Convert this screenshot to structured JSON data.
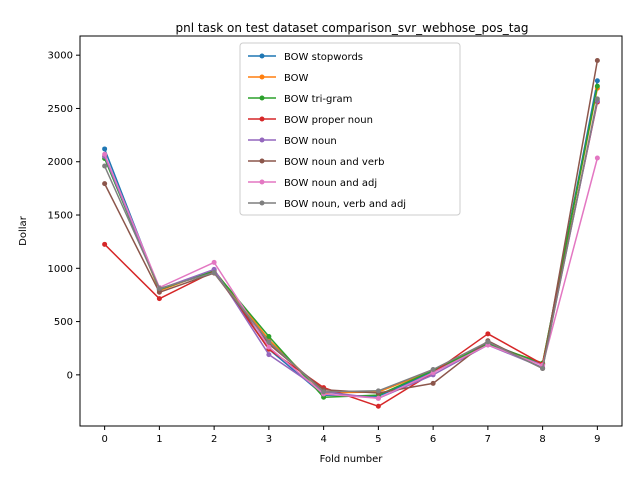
{
  "chart_data": {
    "type": "line",
    "title": "pnl task on test dataset comparison_svr_webhose_pos_tag",
    "xlabel": "Fold number",
    "ylabel": "Dollar",
    "x": [
      0,
      1,
      2,
      3,
      4,
      5,
      6,
      7,
      8,
      9
    ],
    "xlim": [
      -0.45,
      9.45
    ],
    "ylim": [
      -480,
      3180
    ],
    "yticks": [
      0,
      500,
      1000,
      1500,
      2000,
      2500,
      3000
    ],
    "grid": false,
    "legend_position": "upper center",
    "series": [
      {
        "name": "BOW stopwords",
        "color": "#1f77b4",
        "values": [
          2120,
          800,
          985,
          240,
          -190,
          -200,
          30,
          300,
          100,
          2760
        ]
      },
      {
        "name": "BOW",
        "color": "#ff7f0e",
        "values": [
          2050,
          790,
          980,
          330,
          -170,
          -160,
          40,
          290,
          110,
          2690
        ]
      },
      {
        "name": "BOW tri-gram",
        "color": "#2ca02c",
        "values": [
          2030,
          800,
          975,
          360,
          -210,
          -190,
          40,
          290,
          110,
          2710
        ]
      },
      {
        "name": "BOW proper noun",
        "color": "#d62728",
        "values": [
          1225,
          715,
          970,
          240,
          -120,
          -295,
          20,
          385,
          100,
          2560
        ]
      },
      {
        "name": "BOW noun",
        "color": "#9467bd",
        "values": [
          2050,
          805,
          990,
          190,
          -160,
          -220,
          0,
          280,
          70,
          2570
        ]
      },
      {
        "name": "BOW noun and verb",
        "color": "#8c564b",
        "values": [
          1795,
          775,
          955,
          290,
          -140,
          -170,
          -80,
          320,
          60,
          2950
        ]
      },
      {
        "name": "BOW noun and adj",
        "color": "#e377c2",
        "values": [
          2070,
          820,
          1055,
          260,
          -180,
          -220,
          20,
          280,
          90,
          2035
        ]
      },
      {
        "name": "BOW noun, verb and adj",
        "color": "#7f7f7f",
        "values": [
          1960,
          810,
          960,
          310,
          -160,
          -150,
          50,
          310,
          60,
          2590
        ]
      }
    ]
  }
}
